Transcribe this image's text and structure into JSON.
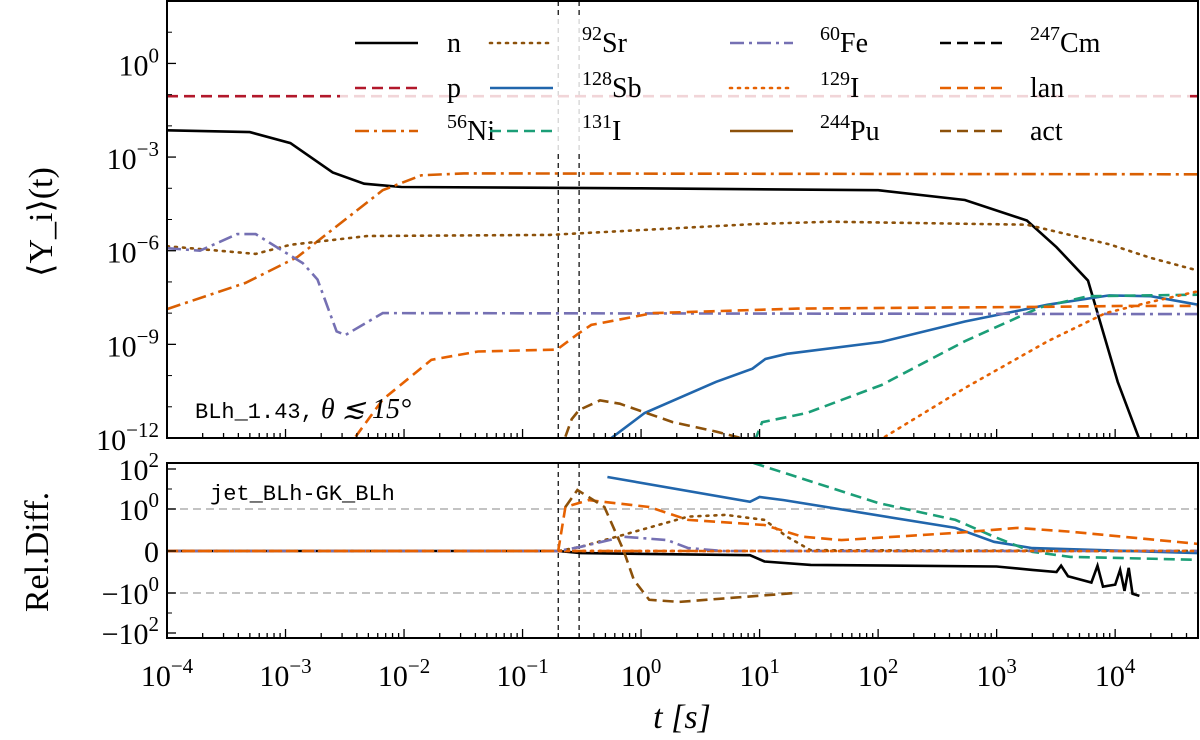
{
  "chart_data": [
    {
      "type": "line",
      "panel": "top",
      "ylabel": "⟨Y_i⟩(t)",
      "xscale": "log",
      "yscale": "log",
      "xlim": [
        0.0001,
        50000.0
      ],
      "ylim": [
        1e-12,
        100.0
      ],
      "yticks": [
        {
          "base": "10",
          "exp": "0",
          "v": 1
        },
        {
          "base": "10",
          "exp": "−3",
          "v": 0.001
        },
        {
          "base": "10",
          "exp": "−6",
          "v": 1e-06
        },
        {
          "base": "10",
          "exp": "−9",
          "v": 1e-09
        },
        {
          "base": "10",
          "exp": "−12",
          "v": 1e-12
        }
      ],
      "annotation": {
        "mono": "BLh_1.43,",
        "math": " θ ≲ 15°"
      },
      "vlines": [
        0.2,
        0.3
      ],
      "legend_position": "top-right",
      "series": [
        {
          "name": "n",
          "sup": "",
          "label": "n",
          "color": "#000000",
          "style": "solid",
          "points": [
            [
              0.0001,
              0.0072
            ],
            [
              0.0005,
              0.0063
            ],
            [
              0.0011,
              0.0028
            ],
            [
              0.0025,
              0.00032
            ],
            [
              0.0046,
              0.00014
            ],
            [
              0.0095,
              0.00011
            ],
            [
              1,
              0.0001
            ],
            [
              100,
              8.7e-05
            ],
            [
              540,
              4.2e-05
            ],
            [
              1800,
              9.3e-06
            ],
            [
              3200,
              1.3e-06
            ],
            [
              5900,
              1.1e-07
            ],
            [
              10500,
              6.3e-11
            ],
            [
              16200,
              8e-13
            ]
          ]
        },
        {
          "name": "p",
          "sup": "",
          "label": "p",
          "color": "#b2182b",
          "style": "dashed",
          "points": [
            [
              0.0001,
              0.089
            ],
            [
              50000.0,
              0.089
            ]
          ]
        },
        {
          "name": "56Ni",
          "sup": "56",
          "label": "Ni",
          "color": "#d95f02",
          "style": "dashdot",
          "points": [
            [
              0.0001,
              1.35e-08
            ],
            [
              0.00046,
              9.3e-08
            ],
            [
              0.00126,
              6.3e-07
            ],
            [
              0.0066,
              8.7e-05
            ],
            [
              0.014,
              0.00026
            ],
            [
              0.032,
              0.0003
            ],
            [
              50000.0,
              0.00028
            ]
          ]
        },
        {
          "name": "92Sr",
          "sup": "92",
          "label": "Sr",
          "color": "#8c510a",
          "style": "dotted",
          "points": [
            [
              0.0001,
              1.4e-06
            ],
            [
              0.00056,
              7.9e-07
            ],
            [
              0.0011,
              1.55e-06
            ],
            [
              0.0049,
              2.95e-06
            ],
            [
              0.17,
              3.2e-06
            ],
            [
              9.3,
              7.2e-06
            ],
            [
              40,
              8.5e-06
            ],
            [
              1800,
              6.8e-06
            ],
            [
              8900,
              1.6e-06
            ],
            [
              20000.0,
              5.9e-07
            ],
            [
              50000.0,
              2.3e-07
            ]
          ]
        },
        {
          "name": "128Sb",
          "sup": "128",
          "label": "Sb",
          "color": "#2166ac",
          "style": "solid",
          "points": [
            [
              0.52,
              8e-13
            ],
            [
              1.07,
              6.3e-12
            ],
            [
              4.3,
              6.3e-11
            ],
            [
              8.7,
              1.66e-10
            ],
            [
              11.2,
              3.4e-10
            ],
            [
              17,
              5e-10
            ],
            [
              107,
              1.2e-09
            ],
            [
              540,
              5.4e-09
            ],
            [
              2700,
              1.86e-08
            ],
            [
              8900,
              3.7e-08
            ],
            [
              20000.0,
              3.5e-08
            ],
            [
              50000.0,
              1.86e-08
            ]
          ]
        },
        {
          "name": "131I",
          "sup": "131",
          "label": "I",
          "color": "#1b9e77",
          "style": "dashed",
          "points": [
            [
              9.1,
              8e-13
            ],
            [
              10.5,
              3.2e-12
            ],
            [
              25,
              6.3e-12
            ],
            [
              107,
              5e-11
            ],
            [
              540,
              1.26e-09
            ],
            [
              2300,
              1.5e-08
            ],
            [
              5900,
              3.5e-08
            ],
            [
              50000.0,
              3.9e-08
            ]
          ]
        },
        {
          "name": "60Fe",
          "sup": "60",
          "label": "Fe",
          "color": "#7570b3",
          "style": "dashdot",
          "points": [
            [
              0.0001,
              1.2e-06
            ],
            [
              0.00019,
              1e-06
            ],
            [
              0.00039,
              3.4e-06
            ],
            [
              0.00056,
              3.4e-06
            ],
            [
              0.00087,
              1.2e-06
            ],
            [
              0.0014,
              4e-07
            ],
            [
              0.00186,
              1.2e-07
            ],
            [
              0.0027,
              2.6e-09
            ],
            [
              0.0032,
              2e-09
            ],
            [
              0.0066,
              1e-08
            ],
            [
              50000.0,
              9.3e-09
            ]
          ]
        },
        {
          "name": "129I",
          "sup": "129",
          "label": "I",
          "color": "#e66101",
          "style": "dotted",
          "points": [
            [
              100,
              8e-13
            ],
            [
              540,
              4e-11
            ],
            [
              2700,
              1.26e-09
            ],
            [
              8300,
              1e-08
            ],
            [
              20000.0,
              2.3e-08
            ],
            [
              50000.0,
              5e-08
            ]
          ]
        },
        {
          "name": "244Pu",
          "sup": "244",
          "label": "Pu",
          "color": "#8c510a",
          "style": "solid",
          "points": []
        },
        {
          "name": "247Cm",
          "sup": "247",
          "label": "Cm",
          "color": "#000000",
          "style": "dashed",
          "points": []
        },
        {
          "name": "lan",
          "sup": "",
          "label": "lan",
          "color": "#e66101",
          "style": "dashed",
          "points": [
            [
              0.0039,
              1.1e-12
            ],
            [
              0.0066,
              1.7e-11
            ],
            [
              0.017,
              3.2e-10
            ],
            [
              0.042,
              5.9e-10
            ],
            [
              0.195,
              6.8e-10
            ],
            [
              0.295,
              2.2e-09
            ],
            [
              0.38,
              4.2e-09
            ],
            [
              1.26,
              1e-08
            ],
            [
              21,
              1.4e-08
            ],
            [
              2700,
              1.6e-08
            ],
            [
              13500.0,
              1.7e-08
            ],
            [
              50000.0,
              1.7e-08
            ]
          ]
        },
        {
          "name": "act",
          "sup": "",
          "label": "act",
          "color": "#8c510a",
          "style": "dashed",
          "points": [
            [
              0.23,
              1.1e-12
            ],
            [
              0.26,
              4e-12
            ],
            [
              0.3,
              7.9e-12
            ],
            [
              0.45,
              1.6e-11
            ],
            [
              0.66,
              1.26e-11
            ],
            [
              1.86,
              3.2e-12
            ],
            [
              4.3,
              1.6e-12
            ],
            [
              8.7,
              8e-13
            ]
          ]
        }
      ]
    },
    {
      "type": "line",
      "panel": "bottom",
      "xlabel": "t [s]",
      "ylabel": "Rel.Diff.",
      "xscale": "log",
      "yscale": "symlog",
      "xlim": [
        0.0001,
        50000.0
      ],
      "ylim": [
        -200,
        200
      ],
      "xticks": [
        {
          "base": "10",
          "exp": "−4",
          "v": 0.0001
        },
        {
          "base": "10",
          "exp": "−3",
          "v": 0.001
        },
        {
          "base": "10",
          "exp": "−2",
          "v": 0.01
        },
        {
          "base": "10",
          "exp": "−1",
          "v": 0.1
        },
        {
          "base": "10",
          "exp": "0",
          "v": 1
        },
        {
          "base": "10",
          "exp": "1",
          "v": 10
        },
        {
          "base": "10",
          "exp": "2",
          "v": 100
        },
        {
          "base": "10",
          "exp": "3",
          "v": 1000
        },
        {
          "base": "10",
          "exp": "4",
          "v": 10000
        }
      ],
      "yticks": [
        {
          "base": "10",
          "exp": "2",
          "v": 100,
          "neg": ""
        },
        {
          "base": "10",
          "exp": "0",
          "v": 1,
          "neg": ""
        },
        {
          "base": "0",
          "exp": "",
          "v": 0,
          "neg": ""
        },
        {
          "base": "10",
          "exp": "0",
          "v": -1,
          "neg": "−"
        },
        {
          "base": "10",
          "exp": "2",
          "v": -100,
          "neg": "−"
        }
      ],
      "hlines": [
        1,
        -1
      ],
      "vlines": [
        0.2,
        0.3
      ],
      "annotation": "jet_BLh-GK_BLh",
      "series": [
        {
          "name": "n",
          "color": "#000000",
          "style": "solid",
          "points": [
            [
              0.0001,
              0
            ],
            [
              0.2,
              0
            ],
            [
              0.31,
              -0.05
            ],
            [
              8.3,
              -0.1
            ],
            [
              11,
              -0.25
            ],
            [
              27,
              -0.33
            ],
            [
              1000,
              -0.37
            ],
            [
              2000,
              -0.45
            ],
            [
              3200,
              -0.5
            ],
            [
              3500,
              -0.35
            ],
            [
              4000,
              -0.6
            ],
            [
              6300,
              -0.75
            ],
            [
              7100,
              -0.35
            ],
            [
              7900,
              -0.85
            ],
            [
              10000,
              -0.8
            ],
            [
              11000,
              -0.45
            ],
            [
              12000,
              -0.95
            ],
            [
              13000,
              -0.4
            ],
            [
              14000,
              -1.1
            ],
            [
              16000,
              -1.4
            ]
          ]
        },
        {
          "name": "p",
          "color": "#b2182b",
          "style": "dotted",
          "points": [
            [
              0.0001,
              0
            ],
            [
              50000.0,
              0
            ]
          ]
        },
        {
          "name": "56Ni",
          "color": "#d95f02",
          "style": "dashdot",
          "points": [
            [
              0.0001,
              0
            ],
            [
              50000.0,
              0
            ]
          ]
        },
        {
          "name": "92Sr",
          "color": "#8c510a",
          "style": "dotted",
          "points": [
            [
              0.0001,
              0
            ],
            [
              0.2,
              0
            ],
            [
              0.31,
              0.1
            ],
            [
              2.5,
              0.82
            ],
            [
              5.2,
              0.86
            ],
            [
              11,
              0.74
            ],
            [
              17,
              0.34
            ],
            [
              27,
              0.02
            ],
            [
              50000.0,
              0
            ]
          ]
        },
        {
          "name": "128Sb",
          "color": "#2166ac",
          "style": "solid",
          "points": [
            [
              0.52,
              40
            ],
            [
              8.3,
              2.3
            ],
            [
              10,
              4
            ],
            [
              16,
              2.8
            ],
            [
              450,
              0.55
            ],
            [
              950,
              0.22
            ],
            [
              2000,
              0.07
            ],
            [
              50000.0,
              -0.05
            ]
          ]
        },
        {
          "name": "131I",
          "color": "#1b9e77",
          "style": "dashed",
          "points": [
            [
              8.9,
              200
            ],
            [
              100,
              2.0
            ],
            [
              450,
              0.74
            ],
            [
              950,
              0.34
            ],
            [
              2000,
              -0.02
            ],
            [
              4200,
              -0.14
            ],
            [
              50000.0,
              -0.21
            ]
          ]
        },
        {
          "name": "60Fe",
          "color": "#7570b3",
          "style": "dashdot",
          "points": [
            [
              0.0001,
              0
            ],
            [
              0.2,
              0
            ],
            [
              0.31,
              0.1
            ],
            [
              0.71,
              0.34
            ],
            [
              1.66,
              0.26
            ],
            [
              2.5,
              0.07
            ],
            [
              5,
              0
            ],
            [
              50000.0,
              0
            ]
          ]
        },
        {
          "name": "129I",
          "color": "#e66101",
          "style": "dotted",
          "points": [
            [
              0.0001,
              0
            ],
            [
              50000.0,
              0
            ]
          ]
        },
        {
          "name": "lan",
          "color": "#e66101",
          "style": "dashed",
          "points": [
            [
              0.0001,
              0
            ],
            [
              0.2,
              0
            ],
            [
              0.23,
              1.26
            ],
            [
              0.36,
              2.8
            ],
            [
              1.17,
              1.26
            ],
            [
              2.5,
              0.74
            ],
            [
              11,
              0.62
            ],
            [
              23,
              0.34
            ],
            [
              49,
              0.26
            ],
            [
              450,
              0.43
            ],
            [
              1500,
              0.55
            ],
            [
              4200,
              0.46
            ],
            [
              50000.0,
              0.17
            ]
          ]
        },
        {
          "name": "act",
          "color": "#8c510a",
          "style": "dashed",
          "points": [
            [
              0.23,
              1.26
            ],
            [
              0.29,
              8.9
            ],
            [
              0.49,
              1.26
            ],
            [
              0.71,
              0.02
            ],
            [
              0.87,
              -0.69
            ],
            [
              1.17,
              -2.2
            ],
            [
              2.1,
              -2.8
            ],
            [
              6.2,
              -1.7
            ],
            [
              20,
              -1.0
            ]
          ]
        }
      ]
    }
  ]
}
